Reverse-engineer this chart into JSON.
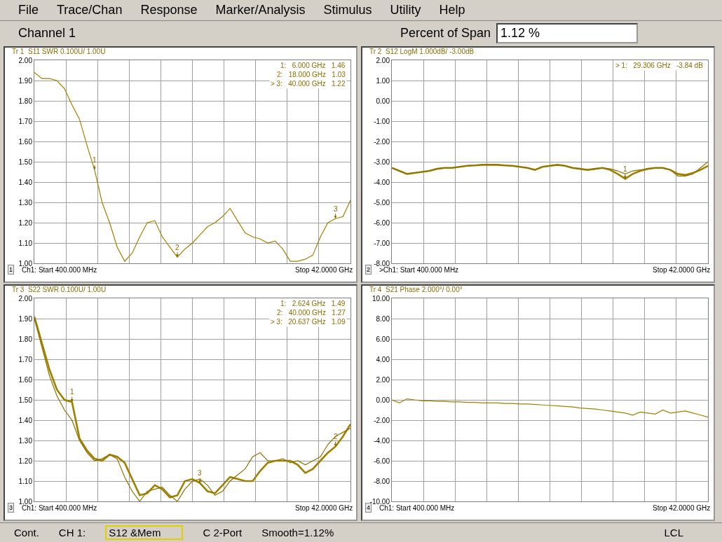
{
  "chart_data": [
    {
      "type": "other",
      "annotations": [
        "File",
        "Trace/Chan",
        "Response",
        "Marker/Analysis",
        "Stimulus",
        "Utility",
        "Help"
      ]
    },
    {
      "type": "other",
      "title": "Channel 1",
      "annotations": [
        "Percent of Span",
        "1.12 %"
      ]
    },
    {
      "type": "line",
      "title": "Tr 1  S11 SWR 0.100U/ 1.00U",
      "grid": true,
      "tick_labels": "y",
      "categories": [
        null,
        null,
        null,
        null,
        null,
        null,
        null,
        null,
        null,
        null,
        null,
        null,
        null,
        null,
        null,
        null,
        null,
        null,
        null,
        null,
        null,
        null,
        null,
        null,
        null,
        null,
        null,
        null,
        null,
        null,
        null,
        null,
        null,
        null,
        null,
        null,
        null,
        null,
        null,
        null,
        null,
        null,
        null
      ],
      "ylim": [
        1,
        2
      ],
      "yticks": [
        {
          "value": 1,
          "label": "1.00"
        },
        {
          "value": 1.1,
          "label": "1.10"
        },
        {
          "value": 1.2,
          "label": "1.20"
        },
        {
          "value": 1.3,
          "label": "1.30"
        },
        {
          "value": 1.4,
          "label": "1.40"
        },
        {
          "value": 1.5,
          "label": "1.50"
        },
        {
          "value": 1.6,
          "label": "1.60"
        },
        {
          "value": 1.7,
          "label": "1.70"
        },
        {
          "value": 1.8,
          "label": "1.80"
        },
        {
          "value": 1.9,
          "label": "1.90"
        },
        {
          "value": 2,
          "label": "2.00"
        }
      ],
      "series": [
        {
          "color": "#a08000",
          "values": [
            1.94,
            1.91,
            1.91,
            1.9,
            1.86,
            1.78,
            1.71,
            1.58,
            1.46,
            1.3,
            1.2,
            1.08,
            1.01,
            1.05,
            1.13,
            1.2,
            1.21,
            1.13,
            1.08,
            1.03,
            1.07,
            1.1,
            1.14,
            1.18,
            1.2,
            1.23,
            1.27,
            1.21,
            1.15,
            1.13,
            1.12,
            1.1,
            1.11,
            1.07,
            1.01,
            1.01,
            1.02,
            1.04,
            1.13,
            1.2,
            1.22,
            1.23,
            1.31
          ]
        }
      ],
      "annotations": [
        "1",
        "Ch1: Start 400.000 MHz",
        "Stop 42.0000 GHz",
        "1:   6.000 GHz   1.46",
        "2:   18.000 GHz   1.03",
        "> 3:   40.000 GHz   1.22",
        {
          "text": "1",
          "y": 1.46
        },
        {
          "text": "2",
          "y": 1.03
        },
        {
          "text": "3",
          "y": 1.22
        }
      ]
    },
    {
      "type": "line",
      "title": "Tr 2  S12 LogM 1.000dB/ -3.00dB",
      "grid": true,
      "tick_labels": "y",
      "categories": [
        null,
        null,
        null,
        null,
        null,
        null,
        null,
        null,
        null,
        null,
        null,
        null,
        null,
        null,
        null,
        null,
        null,
        null,
        null,
        null,
        null,
        null,
        null,
        null,
        null,
        null,
        null,
        null,
        null,
        null,
        null,
        null,
        null,
        null,
        null,
        null,
        null,
        null,
        null,
        null,
        null,
        null,
        null
      ],
      "ylim": [
        -8,
        2
      ],
      "yticks": [
        {
          "value": -8,
          "label": "-8.00"
        },
        {
          "value": -7,
          "label": "-7.00"
        },
        {
          "value": -6,
          "label": "-6.00"
        },
        {
          "value": -5,
          "label": "-5.00"
        },
        {
          "value": -4,
          "label": "-4.00"
        },
        {
          "value": -3,
          "label": "-3.00"
        },
        {
          "value": -2,
          "label": "-2.00"
        },
        {
          "value": -1,
          "label": "-1.00"
        },
        {
          "value": 0,
          "label": "0.00"
        },
        {
          "value": 1,
          "label": "1.00"
        },
        {
          "value": 2,
          "label": "2.00"
        }
      ],
      "series": [
        {
          "color": "#a08000",
          "values": [
            -3.3,
            -3.45,
            -3.6,
            -3.55,
            -3.5,
            -3.45,
            -3.35,
            -3.3,
            -3.3,
            -3.25,
            -3.2,
            -3.18,
            -3.15,
            -3.15,
            -3.15,
            -3.18,
            -3.2,
            -3.25,
            -3.3,
            -3.4,
            -3.25,
            -3.2,
            -3.15,
            -3.2,
            -3.3,
            -3.35,
            -3.4,
            -3.35,
            -3.3,
            -3.4,
            -3.6,
            -3.84,
            -3.6,
            -3.45,
            -3.35,
            -3.3,
            -3.3,
            -3.4,
            -3.6,
            -3.65,
            -3.55,
            -3.4,
            -3.2
          ]
        },
        {
          "color": "#8a7200",
          "values": [
            -3.3,
            -3.45,
            -3.6,
            -3.55,
            -3.5,
            -3.45,
            -3.35,
            -3.3,
            -3.3,
            -3.25,
            -3.2,
            -3.18,
            -3.15,
            -3.15,
            -3.15,
            -3.18,
            -3.2,
            -3.25,
            -3.3,
            -3.4,
            -3.25,
            -3.2,
            -3.15,
            -3.2,
            -3.3,
            -3.35,
            -3.4,
            -3.35,
            -3.3,
            -3.35,
            -3.45,
            -3.6,
            -3.45,
            -3.4,
            -3.35,
            -3.3,
            -3.3,
            -3.4,
            -3.7,
            -3.7,
            -3.6,
            -3.3,
            -3.0
          ]
        }
      ],
      "annotations": [
        "2",
        ">Ch1: Start 400.000 MHz",
        "Stop 42.0000 GHz",
        "> 1:   29.306 GHz   -3.84 dB",
        {
          "text": "1",
          "y": -3.84
        }
      ]
    },
    {
      "type": "line",
      "title": "Tr 3  S22 SWR 0.100U/ 1.00U",
      "grid": true,
      "tick_labels": "y",
      "categories": [
        null,
        null,
        null,
        null,
        null,
        null,
        null,
        null,
        null,
        null,
        null,
        null,
        null,
        null,
        null,
        null,
        null,
        null,
        null,
        null,
        null,
        null,
        null,
        null,
        null,
        null,
        null,
        null,
        null,
        null,
        null,
        null,
        null,
        null,
        null,
        null,
        null,
        null,
        null,
        null,
        null,
        null,
        null
      ],
      "ylim": [
        1,
        2
      ],
      "yticks": [
        {
          "value": 1,
          "label": "1.00"
        },
        {
          "value": 1.1,
          "label": "1.10"
        },
        {
          "value": 1.2,
          "label": "1.20"
        },
        {
          "value": 1.3,
          "label": "1.30"
        },
        {
          "value": 1.4,
          "label": "1.40"
        },
        {
          "value": 1.5,
          "label": "1.50"
        },
        {
          "value": 1.6,
          "label": "1.60"
        },
        {
          "value": 1.7,
          "label": "1.70"
        },
        {
          "value": 1.8,
          "label": "1.80"
        },
        {
          "value": 1.9,
          "label": "1.90"
        },
        {
          "value": 2,
          "label": "2.00"
        }
      ],
      "series": [
        {
          "color": "#a08000",
          "values": [
            1.91,
            1.78,
            1.65,
            1.55,
            1.5,
            1.49,
            1.31,
            1.25,
            1.21,
            1.2,
            1.23,
            1.22,
            1.19,
            1.11,
            1.03,
            1.04,
            1.08,
            1.06,
            1.02,
            1.03,
            1.1,
            1.11,
            1.09,
            1.05,
            1.04,
            1.08,
            1.12,
            1.11,
            1.1,
            1.1,
            1.15,
            1.19,
            1.2,
            1.2,
            1.2,
            1.18,
            1.14,
            1.16,
            1.2,
            1.24,
            1.27,
            1.32,
            1.38
          ]
        },
        {
          "color": "#8a7200",
          "values": [
            1.9,
            1.76,
            1.62,
            1.52,
            1.45,
            1.4,
            1.3,
            1.24,
            1.2,
            1.21,
            1.23,
            1.21,
            1.12,
            1.05,
            1.0,
            1.05,
            1.06,
            1.07,
            1.03,
            1.0,
            1.06,
            1.1,
            1.11,
            1.08,
            1.03,
            1.05,
            1.1,
            1.13,
            1.16,
            1.22,
            1.24,
            1.2,
            1.2,
            1.21,
            1.19,
            1.2,
            1.18,
            1.2,
            1.22,
            1.28,
            1.32,
            1.34,
            1.36
          ]
        }
      ],
      "annotations": [
        "3",
        "Ch1: Start 400.000 MHz",
        "Stop 42.0000 GHz",
        "1:   2.624 GHz   1.49",
        "2:   40.000 GHz   1.27",
        "> 3:   20.637 GHz   1.09",
        {
          "text": "1",
          "y": 1.49
        },
        {
          "text": "2",
          "y": 1.27
        },
        {
          "text": "3",
          "y": 1.09
        }
      ]
    },
    {
      "type": "line",
      "title": "Tr 4  S21 Phase 2.000°/ 0.00°",
      "grid": true,
      "tick_labels": "y",
      "categories": [
        null,
        null,
        null,
        null,
        null,
        null,
        null,
        null,
        null,
        null,
        null,
        null,
        null,
        null,
        null,
        null,
        null,
        null,
        null,
        null,
        null,
        null,
        null,
        null,
        null,
        null,
        null,
        null,
        null,
        null,
        null,
        null,
        null,
        null,
        null,
        null,
        null,
        null,
        null,
        null,
        null,
        null,
        null
      ],
      "ylim": [
        -10,
        10
      ],
      "yticks": [
        {
          "value": -10,
          "label": "-10.00"
        },
        {
          "value": -8,
          "label": "-8.00"
        },
        {
          "value": -6,
          "label": "-6.00"
        },
        {
          "value": -4,
          "label": "-4.00"
        },
        {
          "value": -2,
          "label": "-2.00"
        },
        {
          "value": 0,
          "label": "0.00"
        },
        {
          "value": 2,
          "label": "2.00"
        },
        {
          "value": 4,
          "label": "4.00"
        },
        {
          "value": 6,
          "label": "6.00"
        },
        {
          "value": 8,
          "label": "8.00"
        },
        {
          "value": 10,
          "label": "10.00"
        }
      ],
      "series": [
        {
          "color": "#a08000",
          "values": [
            0,
            -0.3,
            0.1,
            0,
            -0.1,
            -0.1,
            -0.15,
            -0.15,
            -0.2,
            -0.2,
            -0.25,
            -0.25,
            -0.3,
            -0.3,
            -0.3,
            -0.35,
            -0.35,
            -0.4,
            -0.4,
            -0.45,
            -0.5,
            -0.55,
            -0.6,
            -0.65,
            -0.7,
            -0.8,
            -0.85,
            -0.9,
            -1.0,
            -1.1,
            -1.2,
            -1.3,
            -1.5,
            -1.2,
            -1.3,
            -1.4,
            -1.0,
            -1.3,
            -1.2,
            -1.1,
            -1.3,
            -1.5,
            -1.7
          ]
        }
      ],
      "annotations": [
        "4",
        "Ch1: Start 400.000 MHz",
        "Stop 42.0000 GHz"
      ]
    },
    {
      "type": "other",
      "annotations": [
        "Cont.",
        "CH 1:",
        "S12 &Mem",
        "C  2-Port",
        "Smooth=1.12%",
        "LCL"
      ]
    }
  ]
}
